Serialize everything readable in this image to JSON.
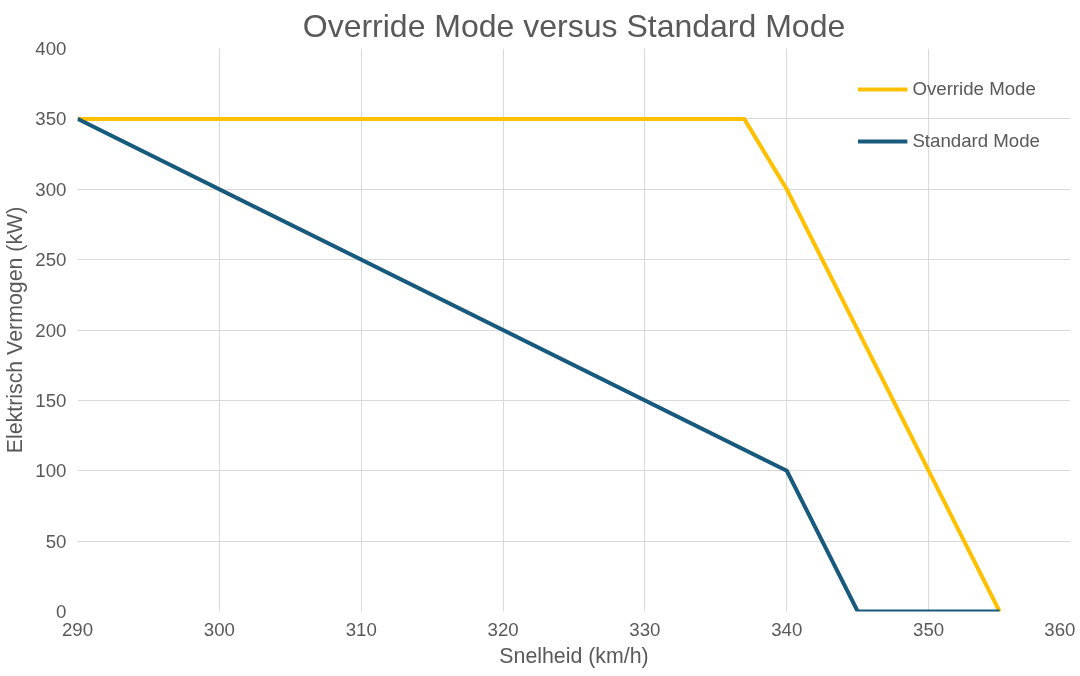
{
  "chart_data": {
    "type": "line",
    "title": "Override Mode versus Standard Mode",
    "xlabel": "Snelheid (km/h)",
    "ylabel": "Elektrisch Vermogen (kW)",
    "series": [
      {
        "name": "Override Mode",
        "color": "#ffc000",
        "x": [
          290,
          337,
          340,
          355
        ],
        "values": [
          350,
          350,
          300,
          0
        ]
      },
      {
        "name": "Standard Mode",
        "color": "#175a7e",
        "x": [
          290,
          340,
          345,
          355
        ],
        "values": [
          350,
          100,
          0,
          0
        ]
      }
    ],
    "xlim": [
      290,
      360
    ],
    "xticks": [
      290,
      300,
      310,
      320,
      330,
      340,
      350,
      360
    ],
    "ylim": [
      0,
      400
    ],
    "yticks": [
      0,
      50,
      100,
      150,
      200,
      250,
      300,
      350,
      400
    ],
    "grid": true,
    "legend": "top right",
    "marker": "none",
    "line_style": "solid"
  }
}
